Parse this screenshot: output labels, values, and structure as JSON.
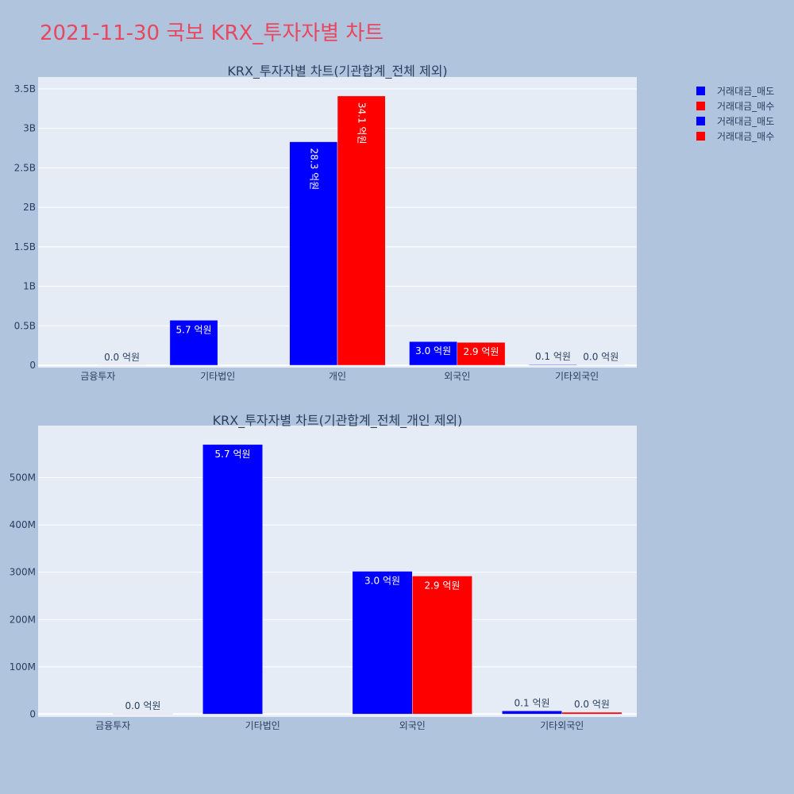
{
  "page_title": "2021-11-30 국보 KRX_투자자별 차트",
  "colors": {
    "sell": "#0000ff",
    "buy": "#ff0000",
    "paper": "#b0c4de",
    "plot_bg": "#e5ecf6",
    "title": "#e8475f"
  },
  "legend": {
    "placement": "top-right",
    "items": [
      {
        "label": "거래대금_매도",
        "color": "#0000ff"
      },
      {
        "label": "거래대금_매수",
        "color": "#ff0000"
      },
      {
        "label": "거래대금_매도",
        "color": "#0000ff"
      },
      {
        "label": "거래대금_매수",
        "color": "#ff0000"
      }
    ]
  },
  "chart_data": [
    {
      "type": "bar",
      "title": "KRX_투자자별 차트(기관합계_전체 제외)",
      "categories": [
        "금융투자",
        "기타법인",
        "개인",
        "외국인",
        "기타외국인"
      ],
      "ylim": [
        0,
        3500000000
      ],
      "yticks": [
        {
          "value": 0,
          "label": "0"
        },
        {
          "value": 500000000,
          "label": "0.5B"
        },
        {
          "value": 1000000000,
          "label": "1B"
        },
        {
          "value": 1500000000,
          "label": "1.5B"
        },
        {
          "value": 2000000000,
          "label": "2B"
        },
        {
          "value": 2500000000,
          "label": "2.5B"
        },
        {
          "value": 3000000000,
          "label": "3B"
        },
        {
          "value": 3500000000,
          "label": "3.5B"
        }
      ],
      "grid": true,
      "series": [
        {
          "name": "거래대금_매도",
          "color": "#0000ff",
          "values": [
            0,
            570000000,
            2830000000,
            300000000,
            8000000
          ],
          "labels": [
            "",
            "5.7 억원",
            "28.3 억원",
            "3.0 억원",
            "0.1 억원"
          ]
        },
        {
          "name": "거래대금_매수",
          "color": "#ff0000",
          "values": [
            1000000,
            0,
            3410000000,
            290000000,
            4000000
          ],
          "labels": [
            "0.0 억원",
            "",
            "34.1 억원",
            "2.9 억원",
            "0.0 억원"
          ]
        }
      ]
    },
    {
      "type": "bar",
      "title": "KRX_투자자별 차트(기관합계_전체_개인 제외)",
      "categories": [
        "금융투자",
        "기타법인",
        "외국인",
        "기타외국인"
      ],
      "ylim": [
        0,
        600000000
      ],
      "yticks": [
        {
          "value": 0,
          "label": "0"
        },
        {
          "value": 100000000,
          "label": "100M"
        },
        {
          "value": 200000000,
          "label": "200M"
        },
        {
          "value": 300000000,
          "label": "300M"
        },
        {
          "value": 400000000,
          "label": "400M"
        },
        {
          "value": 500000000,
          "label": "500M"
        }
      ],
      "grid": true,
      "series": [
        {
          "name": "거래대금_매도",
          "color": "#0000ff",
          "values": [
            0,
            570000000,
            302000000,
            7000000
          ],
          "labels": [
            "",
            "5.7 억원",
            "3.0 억원",
            "0.1 억원"
          ]
        },
        {
          "name": "거래대금_매수",
          "color": "#ff0000",
          "values": [
            1000000,
            0,
            292000000,
            4000000
          ],
          "labels": [
            "0.0 억원",
            "",
            "2.9 억원",
            "0.0 억원"
          ]
        }
      ]
    }
  ]
}
